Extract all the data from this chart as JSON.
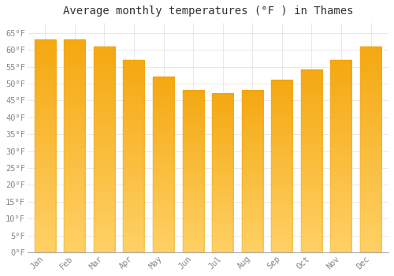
{
  "title": "Average monthly temperatures (°F ) in Thames",
  "months": [
    "Jan",
    "Feb",
    "Mar",
    "Apr",
    "May",
    "Jun",
    "Jul",
    "Aug",
    "Sep",
    "Oct",
    "Nov",
    "Dec"
  ],
  "values": [
    63,
    63,
    61,
    57,
    52,
    48,
    47,
    48,
    51,
    54,
    57,
    61
  ],
  "bar_color_top": "#F5A800",
  "bar_color_bottom": "#FFD060",
  "background_color": "#FFFFFF",
  "plot_bg_color": "#FFFFFF",
  "grid_color": "#E0E0E0",
  "title_color": "#333333",
  "tick_label_color": "#888888",
  "spine_color": "#AAAAAA",
  "ylim": [
    0,
    68
  ],
  "yticks": [
    0,
    5,
    10,
    15,
    20,
    25,
    30,
    35,
    40,
    45,
    50,
    55,
    60,
    65
  ],
  "ytick_labels": [
    "0°F",
    "5°F",
    "10°F",
    "15°F",
    "20°F",
    "25°F",
    "30°F",
    "35°F",
    "40°F",
    "45°F",
    "50°F",
    "55°F",
    "60°F",
    "65°F"
  ],
  "title_fontsize": 10,
  "tick_fontsize": 7.5,
  "bar_width": 0.72
}
